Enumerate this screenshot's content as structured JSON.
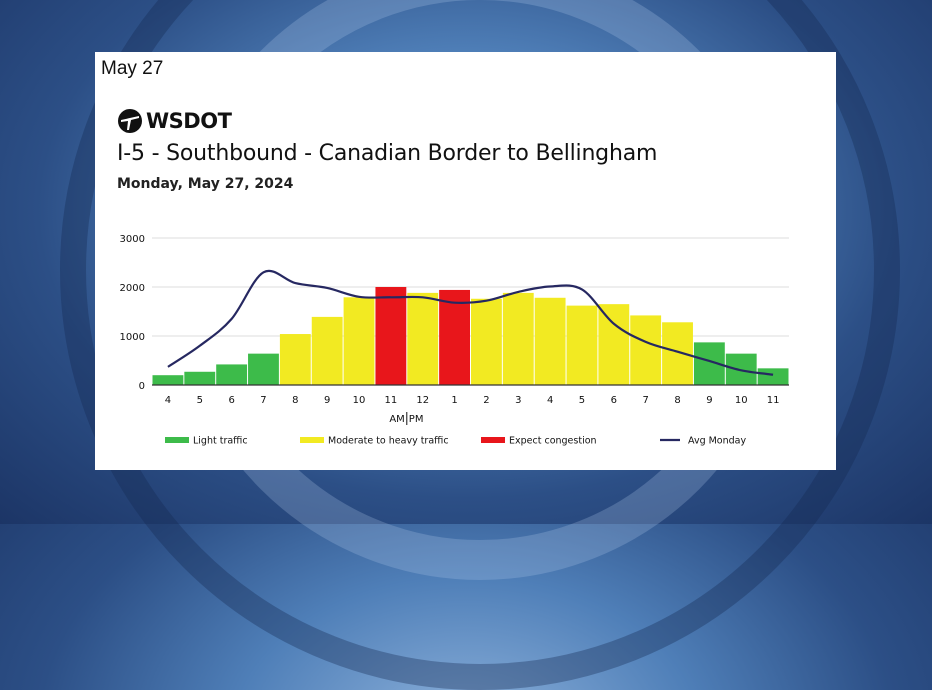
{
  "date_tag": "May 27",
  "logo": {
    "text": "WSDOT",
    "icon": "wsdot-logo-icon"
  },
  "chart_data": {
    "type": "bar",
    "title": "I-5 - Southbound - Canadian Border to Bellingham",
    "subtitle": "Monday, May 27, 2024",
    "categories": [
      "4",
      "5",
      "6",
      "7",
      "8",
      "9",
      "10",
      "11",
      "12",
      "1",
      "2",
      "3",
      "4",
      "5",
      "6",
      "7",
      "8",
      "9",
      "10",
      "11"
    ],
    "values": [
      200,
      270,
      420,
      640,
      1040,
      1390,
      1790,
      2000,
      1880,
      1940,
      1760,
      1880,
      1780,
      1620,
      1650,
      1420,
      1280,
      870,
      640,
      340
    ],
    "levels": [
      "light",
      "light",
      "light",
      "light",
      "moderate",
      "moderate",
      "moderate",
      "congestion",
      "moderate",
      "congestion",
      "moderate",
      "moderate",
      "moderate",
      "moderate",
      "moderate",
      "moderate",
      "moderate",
      "light",
      "light",
      "light"
    ],
    "line": {
      "name": "Avg Monday",
      "values": [
        370,
        800,
        1350,
        2300,
        2080,
        1980,
        1800,
        1790,
        1790,
        1680,
        1720,
        1900,
        2010,
        1950,
        1250,
        880,
        680,
        490,
        300,
        210
      ]
    },
    "yticks": [
      0,
      1000,
      2000,
      3000
    ],
    "ylim": [
      0,
      3000
    ],
    "ampm_label": "AM PM",
    "grid": true,
    "legend": [
      {
        "key": "light",
        "label": "Light traffic",
        "color": "#3dbb4a"
      },
      {
        "key": "moderate",
        "label": "Moderate to heavy traffic",
        "color": "#f2ea22"
      },
      {
        "key": "congestion",
        "label": "Expect congestion",
        "color": "#e8161b"
      },
      {
        "key": "line",
        "label": "Avg Monday",
        "color": "#262861"
      }
    ],
    "legend_position": "bottom"
  }
}
